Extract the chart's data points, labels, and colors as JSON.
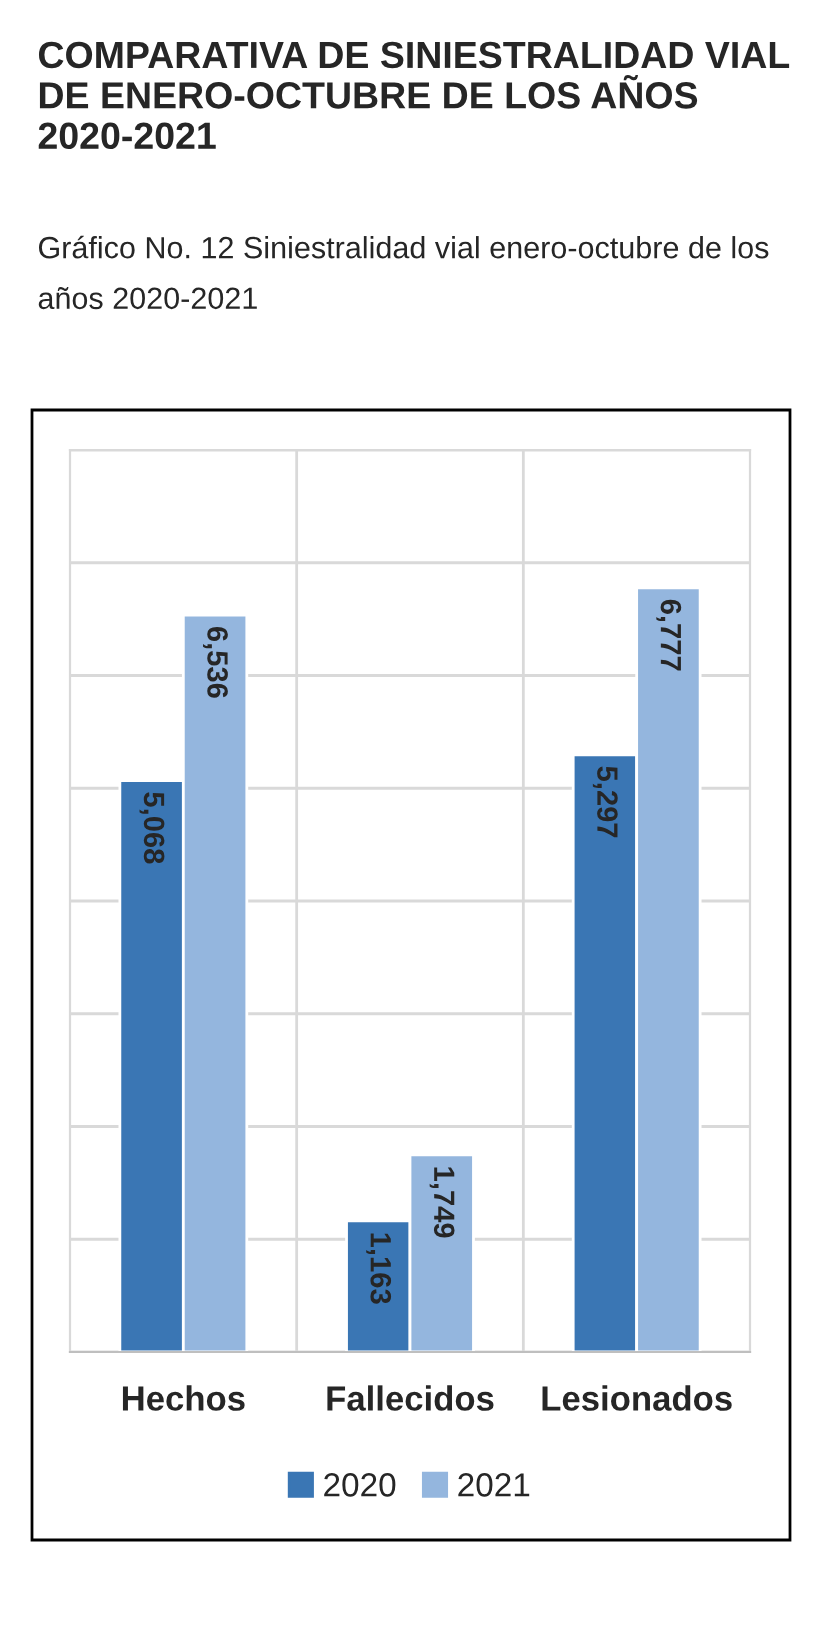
{
  "chart_data": {
    "type": "bar",
    "title": "COMPARATIVA DE SINIESTRALIDAD VIAL DE ENERO-OCTUBRE DE LOS AÑOS 2020-2021",
    "subtitle": "Gráfico No. 12 Siniestralidad vial enero-octubre de los años 2020-2021",
    "categories": [
      "Hechos",
      "Fallecidos",
      "Lesionados"
    ],
    "series": [
      {
        "name": "2020",
        "color": "#3a76b4",
        "values": [
          5068,
          1163,
          5297
        ],
        "value_labels": [
          "5,068",
          "1,163",
          "5,297"
        ]
      },
      {
        "name": "2021",
        "color": "#94b6de",
        "values": [
          6536,
          1749,
          6777
        ],
        "value_labels": [
          "6,536",
          "1,749",
          "6,777"
        ]
      }
    ],
    "ylim": [
      0,
      8000
    ],
    "yticks": [
      {
        "value": 0,
        "label": null
      },
      {
        "value": 1000,
        "label": null
      },
      {
        "value": 2000,
        "label": null
      },
      {
        "value": 3000,
        "label": null
      },
      {
        "value": 4000,
        "label": null
      },
      {
        "value": 5000,
        "label": null
      },
      {
        "value": 6000,
        "label": null
      },
      {
        "value": 7000,
        "label": null
      },
      {
        "value": 8000,
        "label": null
      }
    ],
    "grid": true,
    "legend": "bottom"
  }
}
